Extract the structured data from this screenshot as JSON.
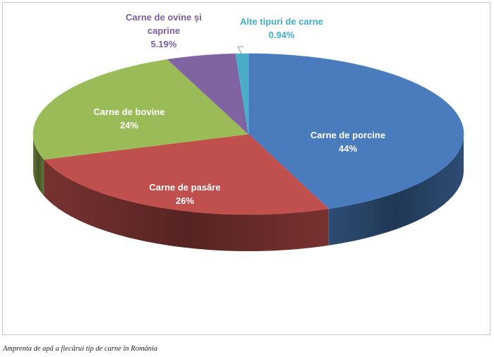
{
  "chart_data": {
    "type": "pie",
    "title": "",
    "slices": [
      {
        "name": "Carne de porcine",
        "value_label": "44%",
        "value": 44,
        "color": "#4a7cbd",
        "label_color": "#ffffff"
      },
      {
        "name": "Carne de pasăre",
        "value_label": "26%",
        "value": 26,
        "color": "#c0504d",
        "label_color": "#ffffff"
      },
      {
        "name": "Carne de bovine",
        "value_label": "24%",
        "value": 24,
        "color": "#9bbb59",
        "label_color": "#ffffff"
      },
      {
        "name_lines": [
          "Carne de ovine și",
          "caprine"
        ],
        "value_label": "5.19%",
        "value": 5.19,
        "color": "#8064a2",
        "label_color": "#7a5ea0"
      },
      {
        "name": "Alte tipuri de carne",
        "value_label": "0.94%",
        "value": 0.94,
        "color": "#4bacc6",
        "label_color": "#3fb0cc"
      }
    ]
  },
  "caption": "Amprenta de apă a fiecărui tip de carne în România"
}
